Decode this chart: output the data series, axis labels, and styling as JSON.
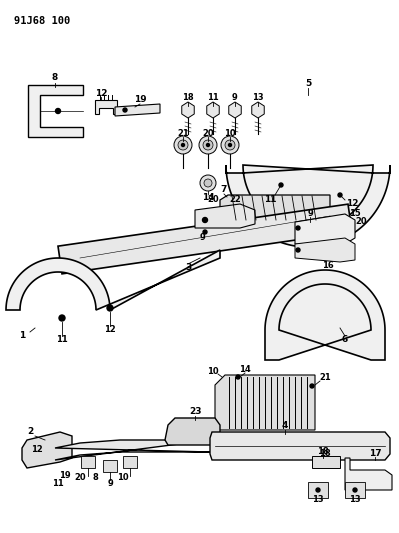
{
  "title": "91J68 100",
  "bg": "#ffffff",
  "lc": "#000000",
  "figsize": [
    3.99,
    5.33
  ],
  "dpi": 100
}
